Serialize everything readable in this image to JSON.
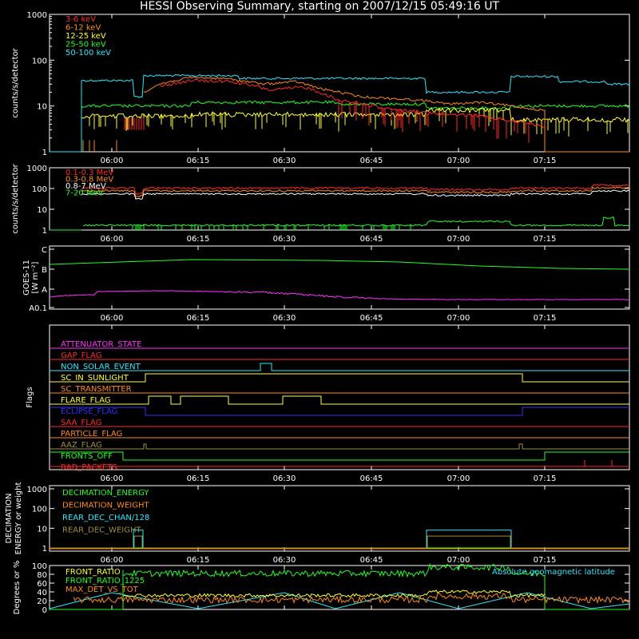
{
  "title": "HESSI Observing Summary, starting on 2007/12/15 05:49:16 UT",
  "colors": {
    "red": "#ff2a2a",
    "orange": "#ff8a1a",
    "yellow": "#ffff30",
    "green": "#22ff22",
    "cyan": "#2ae8ff",
    "magenta": "#ff30ff",
    "blue": "#3030ff",
    "olive": "#a09030",
    "white": "#ffffff"
  },
  "x_ticks": [
    "06:00",
    "06:15",
    "06:30",
    "06:45",
    "07:00",
    "07:15"
  ],
  "chart_data": [
    {
      "type": "line",
      "ylabel": "counts/s/detector",
      "scale": "log",
      "ylim": [
        1,
        1000
      ],
      "y_ticks": [
        "1",
        "10",
        "100",
        "1000"
      ],
      "series": [
        {
          "name": "3-6 keV",
          "color": "red"
        },
        {
          "name": "6-12 keV",
          "color": "orange"
        },
        {
          "name": "12-25 keV",
          "color": "yellow"
        },
        {
          "name": "25-50 keV",
          "color": "green"
        },
        {
          "name": "50-100 keV",
          "color": "cyan"
        }
      ]
    },
    {
      "type": "line",
      "ylabel": "counts/s/detector",
      "scale": "log",
      "ylim": [
        1,
        1000
      ],
      "y_ticks": [
        "1",
        "10",
        "100",
        "1000"
      ],
      "series": [
        {
          "name": "0.1-0.3 MeV",
          "color": "red"
        },
        {
          "name": "0.3-0.8 MeV",
          "color": "orange"
        },
        {
          "name": "0.8-7 MeV",
          "color": "white"
        },
        {
          "name": "7-20 MeV",
          "color": "green"
        }
      ]
    },
    {
      "type": "line",
      "ylabel": "GOES-11",
      "ylabel2": "[W m⁻²]",
      "y_ticks": [
        "A0.1",
        "A",
        "B",
        "C"
      ],
      "series": [
        {
          "name": "",
          "color": "green"
        },
        {
          "name": "",
          "color": "magenta"
        }
      ]
    },
    {
      "type": "line",
      "ylabel": "Flags",
      "series": [
        {
          "name": "ATTENUATOR_STATE",
          "color": "magenta"
        },
        {
          "name": "GAP_FLAG",
          "color": "red"
        },
        {
          "name": "NON_SOLAR_EVENT",
          "color": "cyan"
        },
        {
          "name": "SC_IN_SUNLIGHT",
          "color": "yellow"
        },
        {
          "name": "SC_TRANSMITTER",
          "color": "orange"
        },
        {
          "name": "FLARE_FLAG",
          "color": "yellow"
        },
        {
          "name": "ECLIPSE_FLAG",
          "color": "blue"
        },
        {
          "name": "SAA_FLAG",
          "color": "red"
        },
        {
          "name": "PARTICLE_FLAG",
          "color": "orange"
        },
        {
          "name": "AAZ_FLAG",
          "color": "olive"
        },
        {
          "name": "FRONTS_OFF",
          "color": "green"
        },
        {
          "name": "BAD_PACKETS",
          "color": "red"
        }
      ]
    },
    {
      "type": "line",
      "ylabel": "DECIMATION",
      "ylabel2": "ENERGY or weight",
      "scale": "log",
      "y_ticks": [
        "1",
        "10",
        "100",
        "1000"
      ],
      "series": [
        {
          "name": "DECIMATION_ENERGY",
          "color": "green"
        },
        {
          "name": "DECIMATION_WEIGHT",
          "color": "orange"
        },
        {
          "name": "REAR_DEC_CHAN/128",
          "color": "cyan"
        },
        {
          "name": "REAR_DEC_WEIGHT",
          "color": "olive"
        }
      ]
    },
    {
      "type": "line",
      "ylabel": "Degrees or %",
      "ylim": [
        0,
        100
      ],
      "y_ticks": [
        "0",
        "20",
        "40",
        "60",
        "80",
        "100"
      ],
      "series": [
        {
          "name": "FRONT_RATIO",
          "color": "yellow"
        },
        {
          "name": "FRONT_RATIO_1225",
          "color": "green"
        },
        {
          "name": "MAX_DET_VS_TOT",
          "color": "orange"
        }
      ],
      "annotation": "Absolute geomagnetic latitude",
      "annotation_color": "cyan"
    }
  ]
}
